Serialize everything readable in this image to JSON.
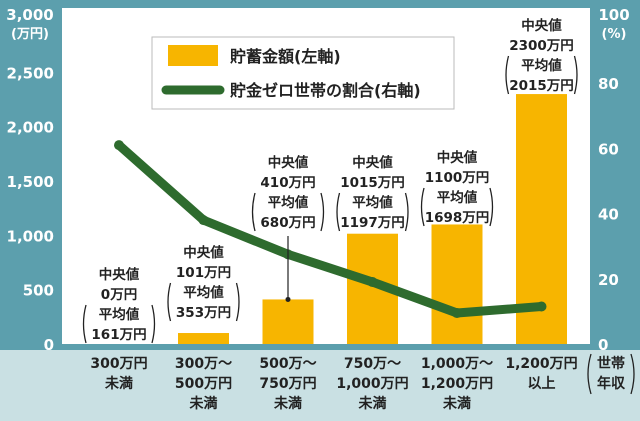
{
  "chart_data": {
    "type": "bar+line",
    "categories": [
      [
        "300万円",
        "未満"
      ],
      [
        "300万～",
        "500万円",
        "未満"
      ],
      [
        "500万～",
        "750万円",
        "未満"
      ],
      [
        "750万～",
        "1,000万円",
        "未満"
      ],
      [
        "1,000万～",
        "1,200万円",
        "未満"
      ],
      [
        "1,200万円",
        "以上"
      ]
    ],
    "x_axis_label": [
      "世帯",
      "年収"
    ],
    "left_axis": {
      "unit": [
        "3,000",
        "(万円)"
      ],
      "ticks": [
        "2,500",
        "2,000",
        "1,500",
        "1,000",
        "500",
        "0"
      ],
      "tick_values": [
        2500,
        2000,
        1500,
        1000,
        500,
        0
      ],
      "ylim": [
        0,
        3000
      ]
    },
    "right_axis": {
      "unit": [
        "100",
        "(%)"
      ],
      "ticks": [
        "80",
        "60",
        "40",
        "20",
        "0"
      ],
      "tick_values": [
        80,
        60,
        40,
        20,
        0
      ],
      "ylim": [
        0,
        100
      ]
    },
    "series": [
      {
        "name": "貯蓄金額(左軸)",
        "type": "bar",
        "axis": "left",
        "color": "#f7b500",
        "values": [
          0,
          101,
          410,
          1015,
          1100,
          2300
        ]
      },
      {
        "name": "貯金ゼロ世帯の割合(右軸)",
        "type": "line",
        "axis": "right",
        "color": "#2e6b2e",
        "values": [
          61,
          38,
          27.5,
          19,
          9.5,
          11.5
        ]
      }
    ],
    "annotations": [
      {
        "category": 0,
        "lines": [
          "中央値",
          "0万円",
          "平均値",
          "161万円"
        ]
      },
      {
        "category": 1,
        "lines": [
          "中央値",
          "101万円",
          "平均値",
          "353万円"
        ]
      },
      {
        "category": 2,
        "lines": [
          "中央値",
          "410万円",
          "平均値",
          "680万円"
        ]
      },
      {
        "category": 3,
        "lines": [
          "中央値",
          "1015万円",
          "平均値",
          "1197万円"
        ]
      },
      {
        "category": 4,
        "lines": [
          "中央値",
          "1100万円",
          "平均値",
          "1698万円"
        ]
      },
      {
        "category": 5,
        "lines": [
          "中央値",
          "2300万円",
          "平均値",
          "2015万円"
        ]
      }
    ],
    "legend_position": "top-left",
    "colors": {
      "axis_band": "#5c9fad",
      "bottom_band": "#c9e0e3",
      "plot_bg": "#ffffff",
      "bar": "#f7b500",
      "line": "#2e6b2e",
      "text_dark": "#222222",
      "text_light": "#ffffff"
    }
  }
}
